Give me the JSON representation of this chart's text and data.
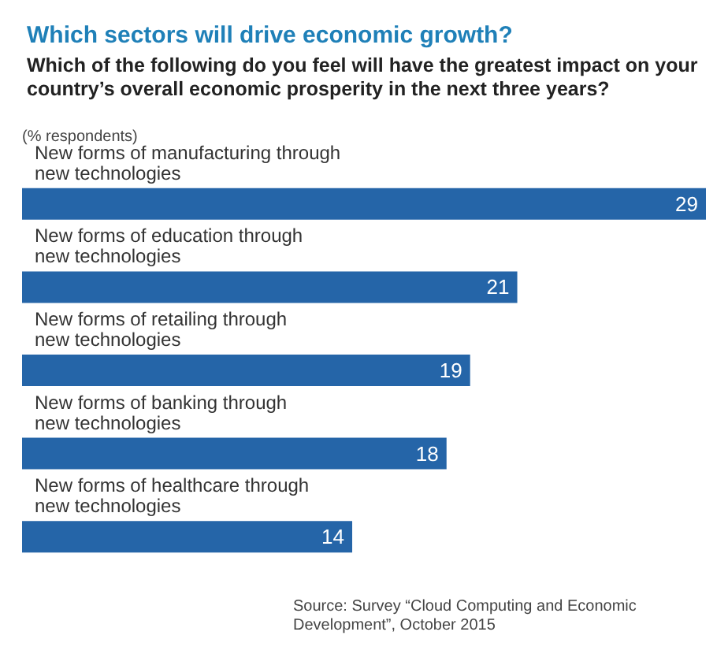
{
  "chart_data": {
    "type": "bar",
    "orientation": "horizontal",
    "title": "Which sectors will drive economic growth?",
    "subtitle": "Which of the following do you feel will have the greatest impact on your country’s overall economic prosperity in the next three years?",
    "annotations": [
      "(% respondents)",
      "Source: Survey “Cloud Computing and Economic Development”, October 2015"
    ],
    "categories": [
      "New forms of manufacturing through\nnew technologies",
      "New forms of education through\nnew technologies",
      "New forms of retailing through\nnew technologies",
      "New forms of banking through\nnew technologies",
      "New forms of healthcare through\nnew technologies"
    ],
    "values": [
      29,
      21,
      19,
      18,
      14
    ],
    "color": "#2565a8",
    "data_labels": true
  }
}
